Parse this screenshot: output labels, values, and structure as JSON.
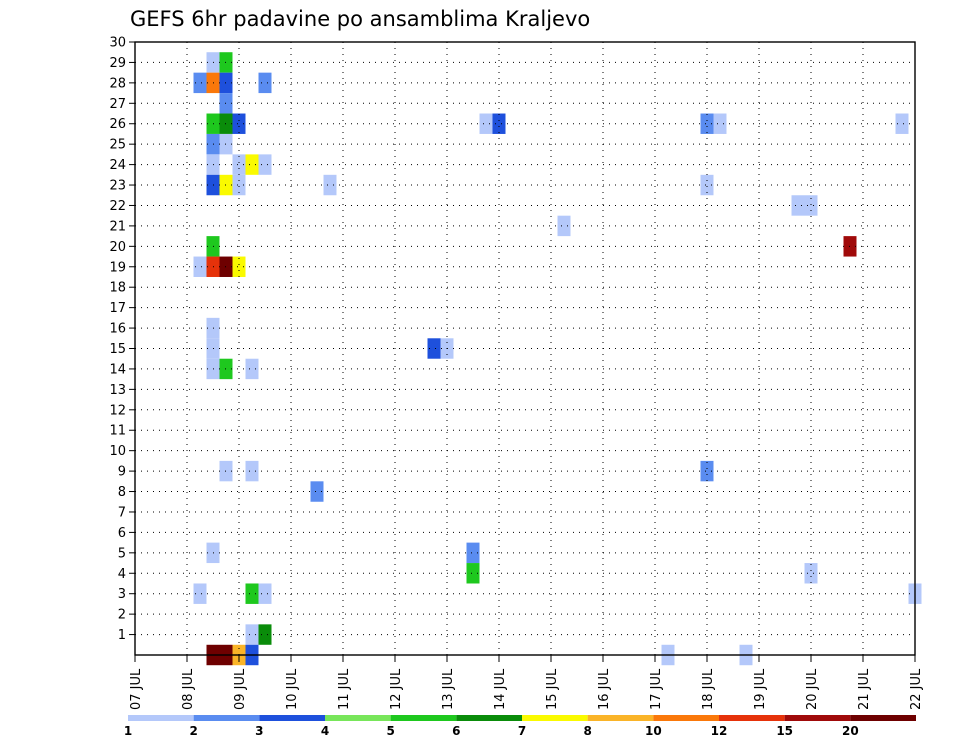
{
  "chart_data": {
    "type": "heatmap",
    "title": "GEFS 6hr padavine po ansamblima Kraljevo",
    "xlabel": "",
    "ylabel": "",
    "x_ticks": [
      "07 JUL",
      "08 JUL",
      "09 JUL",
      "10 JUL",
      "11 JUL",
      "12 JUL",
      "13 JUL",
      "14 JUL",
      "15 JUL",
      "16 JUL",
      "17 JUL",
      "18 JUL",
      "19 JUL",
      "20 JUL",
      "21 JUL",
      "22 JUL"
    ],
    "y_ticks": [
      1,
      2,
      3,
      4,
      5,
      6,
      7,
      8,
      9,
      10,
      11,
      12,
      13,
      14,
      15,
      16,
      17,
      18,
      19,
      20,
      21,
      22,
      23,
      24,
      25,
      26,
      27,
      28,
      29,
      30
    ],
    "xlim_days": [
      7,
      22
    ],
    "ylim": [
      0,
      30
    ],
    "grid": true,
    "legend_placement": "bottom",
    "legend": {
      "levels": [
        "1",
        "2",
        "3",
        "4",
        "5",
        "6",
        "7",
        "8",
        "10",
        "12",
        "15",
        "20"
      ],
      "colors": [
        "#b4c8fa",
        "#5a8cf0",
        "#1e50dc",
        "#78e65a",
        "#1ec81e",
        "#0a8c0a",
        "#fafa00",
        "#fab428",
        "#fa780a",
        "#e6320a",
        "#a00a0a",
        "#6e0000"
      ]
    },
    "cells": [
      {
        "day": 8.5,
        "member": 29,
        "v": 1
      },
      {
        "day": 8.75,
        "member": 29,
        "v": 5
      },
      {
        "day": 8.25,
        "member": 28,
        "v": 2
      },
      {
        "day": 8.5,
        "member": 28,
        "v": 10
      },
      {
        "day": 8.75,
        "member": 28,
        "v": 3
      },
      {
        "day": 9.5,
        "member": 28,
        "v": 2
      },
      {
        "day": 8.75,
        "member": 27,
        "v": 2
      },
      {
        "day": 8.5,
        "member": 26,
        "v": 5
      },
      {
        "day": 8.75,
        "member": 26,
        "v": 6
      },
      {
        "day": 9.0,
        "member": 26,
        "v": 3
      },
      {
        "day": 13.75,
        "member": 26,
        "v": 1
      },
      {
        "day": 14.0,
        "member": 26,
        "v": 3
      },
      {
        "day": 18.0,
        "member": 26,
        "v": 2
      },
      {
        "day": 18.25,
        "member": 26,
        "v": 1
      },
      {
        "day": 21.75,
        "member": 26,
        "v": 1
      },
      {
        "day": 8.5,
        "member": 25,
        "v": 2
      },
      {
        "day": 8.75,
        "member": 25,
        "v": 1
      },
      {
        "day": 8.5,
        "member": 24,
        "v": 1
      },
      {
        "day": 9.0,
        "member": 24,
        "v": 1
      },
      {
        "day": 9.25,
        "member": 24,
        "v": 7
      },
      {
        "day": 9.5,
        "member": 24,
        "v": 1
      },
      {
        "day": 8.5,
        "member": 23,
        "v": 3
      },
      {
        "day": 8.75,
        "member": 23,
        "v": 7
      },
      {
        "day": 9.0,
        "member": 23,
        "v": 1
      },
      {
        "day": 10.75,
        "member": 23,
        "v": 1
      },
      {
        "day": 18.0,
        "member": 23,
        "v": 1
      },
      {
        "day": 19.75,
        "member": 22,
        "v": 1
      },
      {
        "day": 20.0,
        "member": 22,
        "v": 1
      },
      {
        "day": 15.25,
        "member": 21,
        "v": 1
      },
      {
        "day": 8.5,
        "member": 20,
        "v": 5
      },
      {
        "day": 20.75,
        "member": 20,
        "v": 15
      },
      {
        "day": 8.25,
        "member": 19,
        "v": 1
      },
      {
        "day": 8.5,
        "member": 19,
        "v": 12
      },
      {
        "day": 8.75,
        "member": 19,
        "v": 20
      },
      {
        "day": 9.0,
        "member": 19,
        "v": 7
      },
      {
        "day": 8.5,
        "member": 16,
        "v": 1
      },
      {
        "day": 8.5,
        "member": 15,
        "v": 1
      },
      {
        "day": 12.75,
        "member": 15,
        "v": 3
      },
      {
        "day": 13.0,
        "member": 15,
        "v": 1
      },
      {
        "day": 8.5,
        "member": 14,
        "v": 1
      },
      {
        "day": 8.75,
        "member": 14,
        "v": 5
      },
      {
        "day": 9.25,
        "member": 14,
        "v": 1
      },
      {
        "day": 8.75,
        "member": 9,
        "v": 1
      },
      {
        "day": 9.25,
        "member": 9,
        "v": 1
      },
      {
        "day": 18.0,
        "member": 9,
        "v": 2
      },
      {
        "day": 10.5,
        "member": 8,
        "v": 2
      },
      {
        "day": 8.5,
        "member": 5,
        "v": 1
      },
      {
        "day": 13.5,
        "member": 5,
        "v": 2
      },
      {
        "day": 13.5,
        "member": 4,
        "v": 5
      },
      {
        "day": 20.0,
        "member": 4,
        "v": 1
      },
      {
        "day": 8.25,
        "member": 3,
        "v": 1
      },
      {
        "day": 9.25,
        "member": 3,
        "v": 5
      },
      {
        "day": 9.5,
        "member": 3,
        "v": 1
      },
      {
        "day": 22.0,
        "member": 3,
        "v": 1
      },
      {
        "day": 9.25,
        "member": 1,
        "v": 1
      },
      {
        "day": 9.5,
        "member": 1,
        "v": 6
      },
      {
        "day": 8.5,
        "member": 0,
        "v": 20
      },
      {
        "day": 8.75,
        "member": 0,
        "v": 20
      },
      {
        "day": 9.0,
        "member": 0,
        "v": 8
      },
      {
        "day": 9.25,
        "member": 0,
        "v": 3
      },
      {
        "day": 17.25,
        "member": 0,
        "v": 1
      },
      {
        "day": 18.75,
        "member": 0,
        "v": 1
      }
    ]
  }
}
